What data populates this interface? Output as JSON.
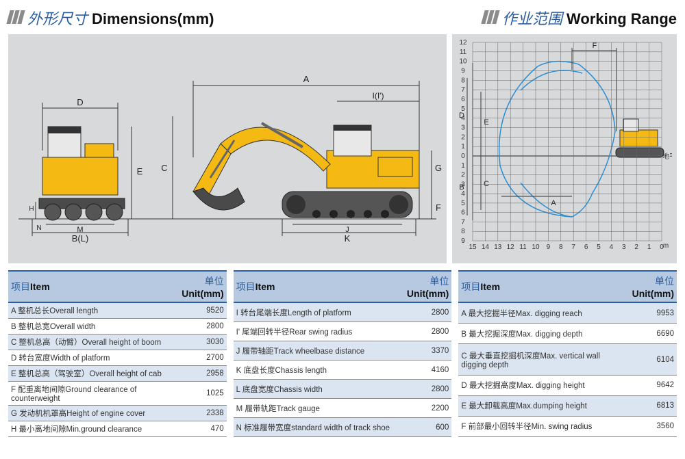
{
  "dimensions_section": {
    "cn_title": "外形尺寸",
    "en_title": "Dimensions(mm)",
    "panel_bg": "#d8d9da",
    "diagram_labels": [
      "A",
      "B(L)",
      "C",
      "D",
      "E",
      "F",
      "G",
      "H",
      "I(I')",
      "J",
      "K",
      "M",
      "N"
    ],
    "excavator_color": "#f5b914",
    "outline_color": "#333333"
  },
  "working_range_section": {
    "cn_title": "作业范围",
    "en_title": "Working Range",
    "panel_bg": "#d8d9da",
    "ground_label": "地平线",
    "x_axis_unit": "m",
    "x_ticks": [
      15,
      14,
      13,
      12,
      11,
      10,
      9,
      8,
      7,
      6,
      5,
      4,
      3,
      2,
      1,
      0
    ],
    "y_ticks_top": [
      12,
      11,
      10,
      9,
      8,
      7,
      6,
      5,
      4,
      3,
      2,
      1,
      0
    ],
    "y_ticks_bottom": [
      1,
      2,
      3,
      4,
      5,
      6,
      7,
      8,
      9
    ],
    "range_labels": [
      "A",
      "B",
      "C",
      "D",
      "E",
      "F"
    ],
    "curve_color": "#2a8fd4",
    "grid_color": "#666666"
  },
  "tables": {
    "header_item_cn": "项目",
    "header_item_en": "Item",
    "header_unit_cn": "单位",
    "header_unit_en": "Unit(mm)",
    "striped_bg": "#dbe5f1",
    "header_bg": "#b7c9e0",
    "rule_color": "#2a5fa5",
    "col1": [
      {
        "label": "A 整机总长Overall length",
        "value": "9520"
      },
      {
        "label": "B 整机总宽Overall width",
        "value": "2800"
      },
      {
        "label": "C 整机总高（动臂）Overall height of boom",
        "value": "3030"
      },
      {
        "label": "D 转台宽度Width of platform",
        "value": "2700"
      },
      {
        "label": "E 整机总高（驾驶室）Overall height of cab",
        "value": "2958"
      },
      {
        "label": "F 配重离地间隙Ground clearance of counterweight",
        "value": "1025"
      },
      {
        "label": "G 发动机机罩高Height of engine cover",
        "value": "2338"
      },
      {
        "label": "H 最小离地间隙Min.ground clearance",
        "value": "470"
      }
    ],
    "col2": [
      {
        "label": "I 转台尾端长度Length of platform",
        "value": "2800"
      },
      {
        "label": "I' 尾端回转半径Rear swing radius",
        "value": "2800"
      },
      {
        "label": "J 履带轴距Track wheelbase distance",
        "value": "3370"
      },
      {
        "label": "K 底盘长度Chassis length",
        "value": "4160"
      },
      {
        "label": "L 底盘宽度Chassis width",
        "value": "2800"
      },
      {
        "label": "M 履带轨距Track gauge",
        "value": "2200"
      },
      {
        "label": "N 标准履带宽度standard width of track shoe",
        "value": "600"
      }
    ],
    "col3": [
      {
        "label": "A 最大挖掘半径Max. digging reach",
        "value": "9953"
      },
      {
        "label": "B 最大挖掘深度Max. digging depth",
        "value": "6690"
      },
      {
        "label": "C 最大垂直挖掘机深度Max. vertical wall digging depth",
        "value": "6104"
      },
      {
        "label": "D 最大挖掘高度Max. digging height",
        "value": "9642"
      },
      {
        "label": "E 最大卸载高度Max.dumping height",
        "value": "6813"
      },
      {
        "label": "F 前部最小回转半径Min. swing radius",
        "value": "3560"
      }
    ]
  }
}
